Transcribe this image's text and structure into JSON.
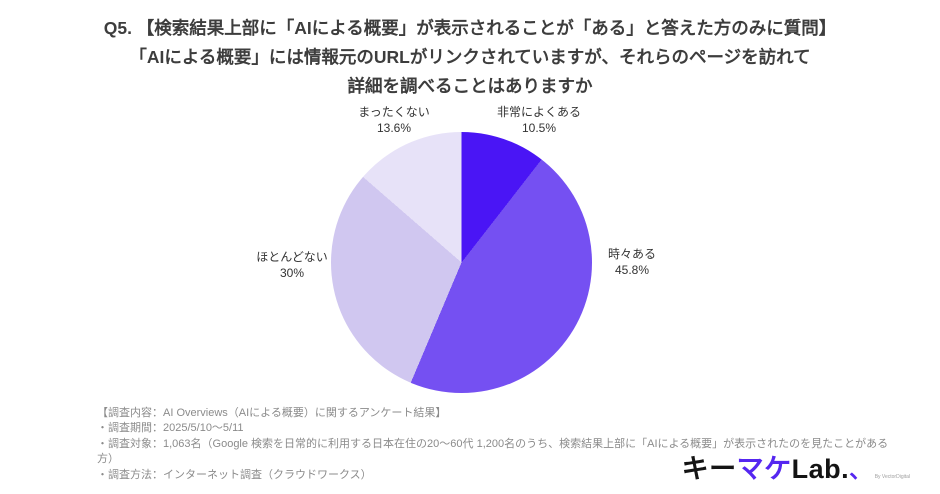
{
  "title": {
    "line1": "Q5. 【検索結果上部に「AIによる概要」が表示されることが「ある」と答えた方のみに質問】",
    "line2": "「AIによる概要」には情報元のURLがリンクされていますが、それらのページを訪れて",
    "line3": "詳細を調べることはありますか"
  },
  "chart_data": {
    "type": "pie",
    "title": "「AIによる概要」には情報元のURLがリンクされていますが、それらのページを訪れて詳細を調べることはありますか",
    "start_angle_deg": 0,
    "direction": "clockwise",
    "legend_position": "labels-outside",
    "slices": [
      {
        "label": "非常によくある",
        "value": 10.5,
        "value_label": "10.5%",
        "color": "#4a15f5"
      },
      {
        "label": "時々ある",
        "value": 45.8,
        "value_label": "45.8%",
        "color": "#7550f2"
      },
      {
        "label": "ほとんどない",
        "value": 30,
        "value_label": "30%",
        "color": "#d0c7f0"
      },
      {
        "label": "まったくない",
        "value": 13.6,
        "value_label": "13.6%",
        "color": "#e7e2f8"
      }
    ]
  },
  "footer": {
    "lines": [
      "【調査内容：AI Overviews（AIによる概要）に関するアンケート結果】",
      "・調査期間：2025/5/10～5/11",
      "・調査対象：1,063名（Google 検索を日常的に利用する日本在住の20～60代 1,200名のうち、検索結果上部に「AIによる概要」が表示されたのを見たことがある方）",
      "・調査方法：インターネット調査（クラウドワークス）"
    ]
  },
  "logo": {
    "part1": "キー",
    "part2": "マケ",
    "part3": "Lab.",
    "comma": "、",
    "byline": "By VectorDigital",
    "accent_color": "#5526f0"
  }
}
